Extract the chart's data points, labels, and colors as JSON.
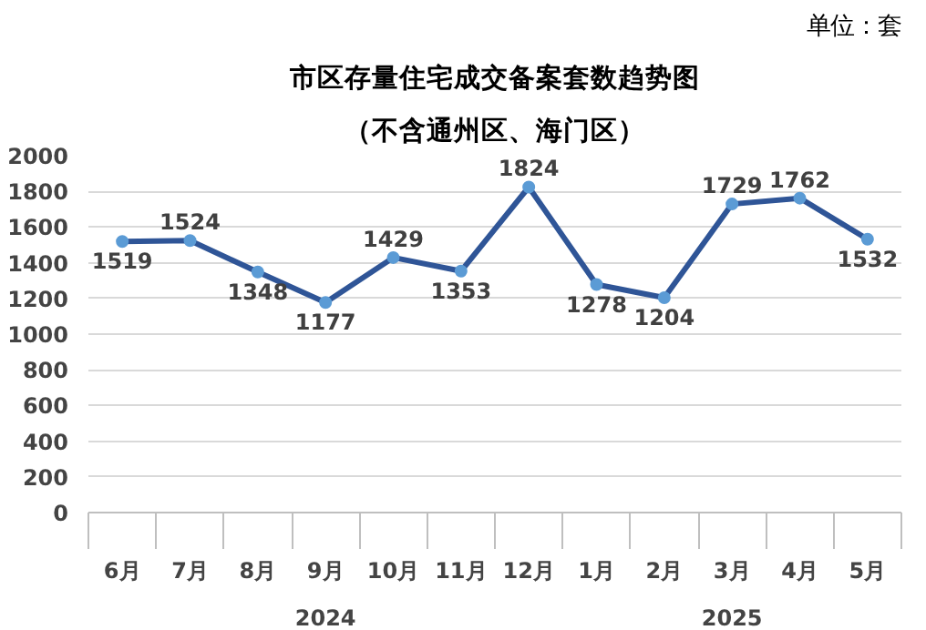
{
  "chart_data": {
    "type": "line",
    "title": "市区存量住宅成交备案套数趋势图",
    "subtitle": "（不含通州区、海门区）",
    "categories": [
      "6月",
      "7月",
      "8月",
      "9月",
      "10月",
      "11月",
      "12月",
      "1月",
      "2月",
      "3月",
      "4月",
      "5月"
    ],
    "series": [
      {
        "color": "#2f5597",
        "values": [
          1519,
          1524,
          1348,
          1177,
          1429,
          1353,
          1824,
          1278,
          1204,
          1729,
          1762,
          1532
        ]
      }
    ],
    "data_labels": true,
    "marker": "circle",
    "line_style": "solid",
    "grid": "y",
    "ylim": [
      0,
      2000
    ],
    "yticks": [
      0,
      200,
      400,
      600,
      800,
      1000,
      1200,
      1400,
      1600,
      1800,
      2000
    ],
    "annotations": [
      "单位：套",
      "2024",
      "2025"
    ]
  }
}
